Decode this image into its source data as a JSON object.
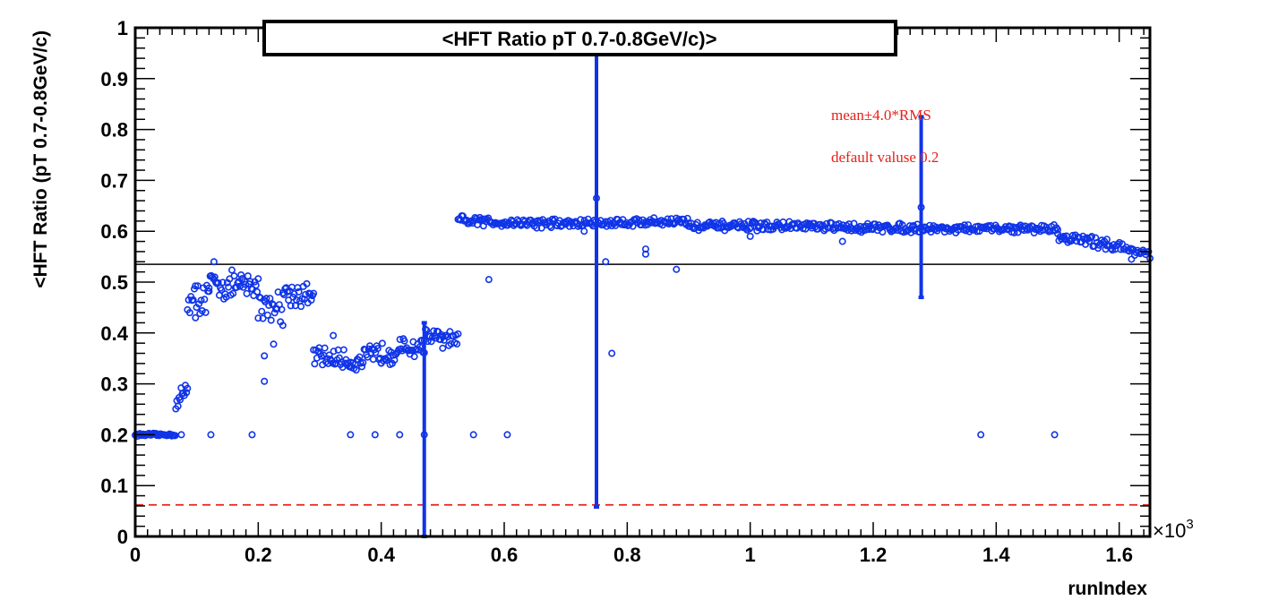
{
  "chart_data": {
    "type": "scatter",
    "title": "<HFT Ratio pT 0.7-0.8GeV/c)>",
    "xlabel": "runIndex",
    "ylabel": "<HFT Ratio (pT 0.7-0.8GeV/c)",
    "x_multiplier_base": "×10",
    "x_multiplier_exp": "3",
    "xlim": [
      0,
      1.65
    ],
    "ylim": [
      0,
      1
    ],
    "x_ticks": [
      {
        "v": 0,
        "label": "0"
      },
      {
        "v": 0.2,
        "label": "0.2"
      },
      {
        "v": 0.4,
        "label": "0.4"
      },
      {
        "v": 0.6,
        "label": "0.6"
      },
      {
        "v": 0.8,
        "label": "0.8"
      },
      {
        "v": 1.0,
        "label": "1"
      },
      {
        "v": 1.2,
        "label": "1.2"
      },
      {
        "v": 1.4,
        "label": "1.4"
      },
      {
        "v": 1.6,
        "label": "1.6"
      }
    ],
    "y_ticks": [
      {
        "v": 0,
        "label": "0"
      },
      {
        "v": 0.1,
        "label": "0.1"
      },
      {
        "v": 0.2,
        "label": "0.2"
      },
      {
        "v": 0.3,
        "label": "0.3"
      },
      {
        "v": 0.4,
        "label": "0.4"
      },
      {
        "v": 0.5,
        "label": "0.5"
      },
      {
        "v": 0.6,
        "label": "0.6"
      },
      {
        "v": 0.7,
        "label": "0.7"
      },
      {
        "v": 0.8,
        "label": "0.8"
      },
      {
        "v": 0.9,
        "label": "0.9"
      },
      {
        "v": 1.0,
        "label": "1"
      }
    ],
    "mean_line": 0.535,
    "upper_limit": 1.0,
    "lower_limit": 0.062,
    "annotations": [
      "mean±4.0*RMS",
      "default valuse 0.2"
    ],
    "colors": {
      "points": "#1034e8",
      "mean": "#000000",
      "limits": "#e8201a",
      "annotation": "#e8201a"
    },
    "segments": [
      {
        "x0": 0.0,
        "x1": 0.065,
        "y0": 0.2,
        "y1": 0.2,
        "spread": 0.002,
        "n": 36
      },
      {
        "x0": 0.066,
        "x1": 0.085,
        "y0": 0.255,
        "y1": 0.295,
        "spread": 0.015,
        "n": 12
      },
      {
        "x0": 0.085,
        "x1": 0.12,
        "y0": 0.465,
        "y1": 0.47,
        "spread": 0.025,
        "n": 20
      },
      {
        "x0": 0.12,
        "x1": 0.2,
        "y0": 0.495,
        "y1": 0.49,
        "spread": 0.022,
        "n": 44
      },
      {
        "x0": 0.2,
        "x1": 0.24,
        "y0": 0.46,
        "y1": 0.45,
        "spread": 0.028,
        "n": 22
      },
      {
        "x0": 0.24,
        "x1": 0.29,
        "y0": 0.48,
        "y1": 0.47,
        "spread": 0.018,
        "n": 28
      },
      {
        "x0": 0.29,
        "x1": 0.35,
        "y0": 0.355,
        "y1": 0.345,
        "spread": 0.015,
        "n": 34
      },
      {
        "x0": 0.35,
        "x1": 0.4,
        "y0": 0.34,
        "y1": 0.36,
        "spread": 0.018,
        "n": 28
      },
      {
        "x0": 0.4,
        "x1": 0.47,
        "y0": 0.36,
        "y1": 0.375,
        "spread": 0.018,
        "n": 40
      },
      {
        "x0": 0.47,
        "x1": 0.525,
        "y0": 0.395,
        "y1": 0.385,
        "spread": 0.012,
        "n": 30
      },
      {
        "x0": 0.525,
        "x1": 0.7,
        "y0": 0.62,
        "y1": 0.615,
        "spread": 0.008,
        "n": 90
      },
      {
        "x0": 0.7,
        "x1": 0.9,
        "y0": 0.615,
        "y1": 0.62,
        "spread": 0.007,
        "n": 100
      },
      {
        "x0": 0.9,
        "x1": 1.1,
        "y0": 0.61,
        "y1": 0.61,
        "spread": 0.007,
        "n": 100
      },
      {
        "x0": 1.1,
        "x1": 1.3,
        "y0": 0.608,
        "y1": 0.606,
        "spread": 0.007,
        "n": 100
      },
      {
        "x0": 1.3,
        "x1": 1.5,
        "y0": 0.605,
        "y1": 0.605,
        "spread": 0.006,
        "n": 100
      },
      {
        "x0": 1.5,
        "x1": 1.58,
        "y0": 0.59,
        "y1": 0.575,
        "spread": 0.008,
        "n": 40
      },
      {
        "x0": 1.58,
        "x1": 1.65,
        "y0": 0.575,
        "y1": 0.555,
        "spread": 0.008,
        "n": 32
      }
    ],
    "outliers": [
      {
        "x": 0.075,
        "y": 0.2
      },
      {
        "x": 0.123,
        "y": 0.2
      },
      {
        "x": 0.19,
        "y": 0.2
      },
      {
        "x": 0.35,
        "y": 0.2
      },
      {
        "x": 0.39,
        "y": 0.2
      },
      {
        "x": 0.43,
        "y": 0.2
      },
      {
        "x": 0.47,
        "y": 0.2
      },
      {
        "x": 0.55,
        "y": 0.2
      },
      {
        "x": 0.605,
        "y": 0.2
      },
      {
        "x": 1.375,
        "y": 0.2
      },
      {
        "x": 1.495,
        "y": 0.2
      },
      {
        "x": 0.575,
        "y": 0.505
      },
      {
        "x": 0.765,
        "y": 0.54
      },
      {
        "x": 0.775,
        "y": 0.36
      },
      {
        "x": 0.88,
        "y": 0.525
      },
      {
        "x": 0.83,
        "y": 0.555
      },
      {
        "x": 0.83,
        "y": 0.565
      },
      {
        "x": 0.21,
        "y": 0.305
      },
      {
        "x": 0.21,
        "y": 0.355
      },
      {
        "x": 0.225,
        "y": 0.378
      },
      {
        "x": 0.128,
        "y": 0.54
      },
      {
        "x": 0.098,
        "y": 0.43
      },
      {
        "x": 0.322,
        "y": 0.395
      },
      {
        "x": 0.5,
        "y": 0.37
      },
      {
        "x": 0.73,
        "y": 0.6
      },
      {
        "x": 1.0,
        "y": 0.59
      },
      {
        "x": 1.15,
        "y": 0.58
      },
      {
        "x": 1.62,
        "y": 0.545
      },
      {
        "x": 0.75,
        "y": 0.665
      },
      {
        "x": 1.278,
        "y": 0.647
      }
    ],
    "error_bars": [
      {
        "x": 0.47,
        "y": 0.2,
        "lo": 0.0,
        "hi": 0.42
      },
      {
        "x": 0.75,
        "y": 0.665,
        "lo": 0.058,
        "hi": 1.0
      },
      {
        "x": 1.278,
        "y": 0.647,
        "lo": 0.47,
        "hi": 0.825
      }
    ]
  }
}
